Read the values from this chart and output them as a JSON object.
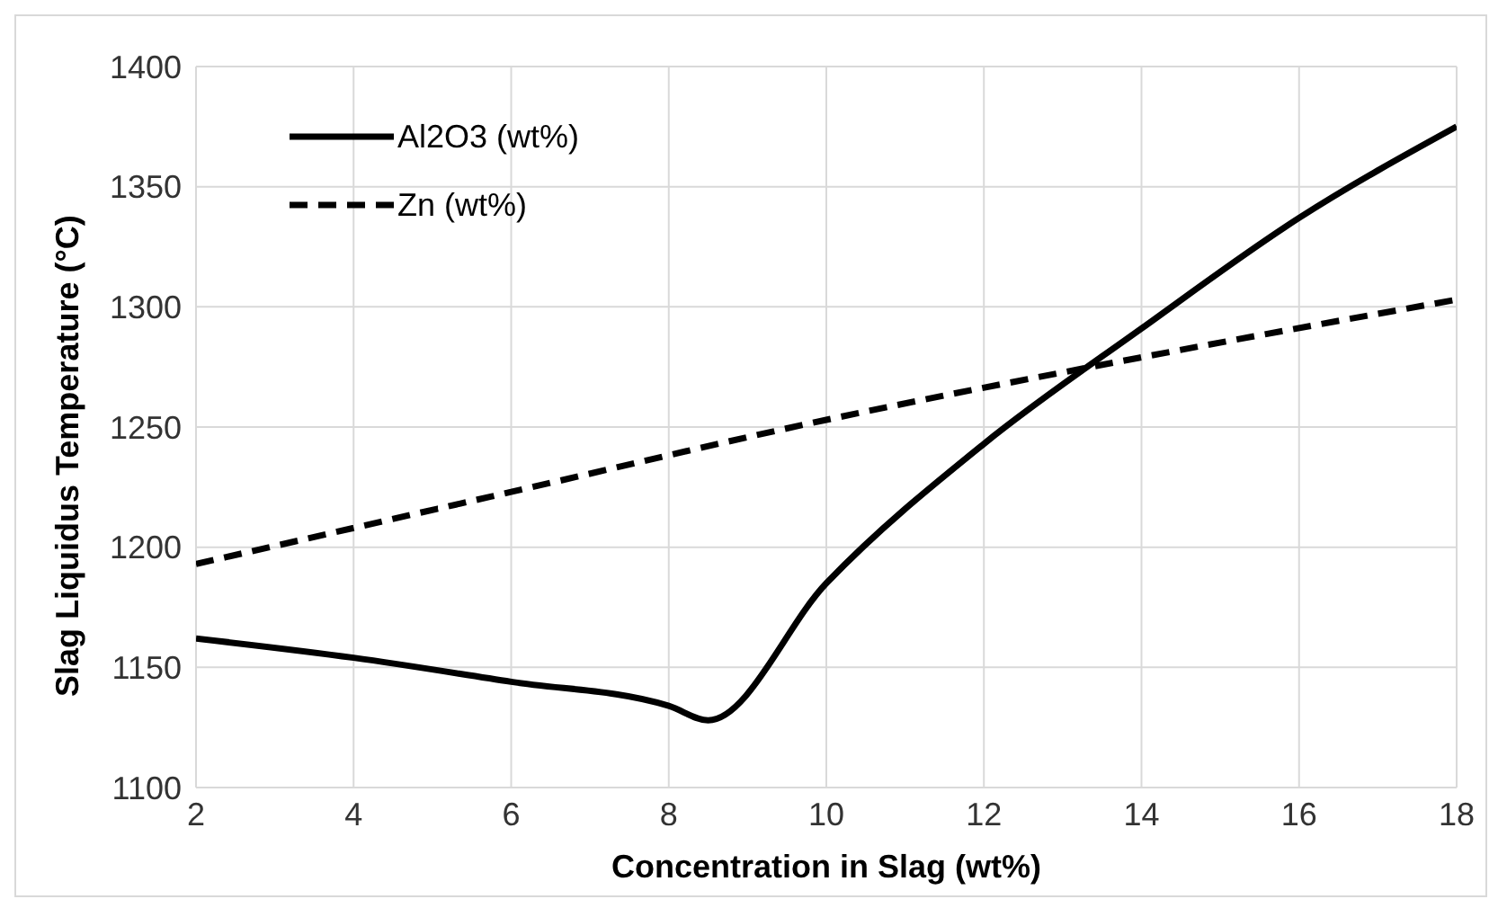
{
  "chart_data": {
    "type": "line",
    "xlabel": "Concentration in Slag (wt%)",
    "ylabel": "Slag Liquidus Temperature (°C)",
    "xlim": [
      2,
      18
    ],
    "xticks": [
      2,
      4,
      6,
      8,
      10,
      12,
      14,
      16,
      18
    ],
    "ylim": [
      1100,
      1400
    ],
    "yticks": [
      1100,
      1150,
      1200,
      1250,
      1300,
      1350,
      1400
    ],
    "grid": true,
    "legend": "top left",
    "marker": "none",
    "series": [
      {
        "name": "Al2O3 (wt%)",
        "color": "#000000",
        "line_style": "solid",
        "x": [
          2,
          4,
          6,
          8,
          8.5,
          10,
          12,
          14,
          16,
          18
        ],
        "values": [
          1162,
          1154,
          1144,
          1134,
          1128,
          1185,
          1243,
          1291,
          1337,
          1375
        ]
      },
      {
        "name": "Zn (wt%)",
        "color": "#000000",
        "line_style": "dashed",
        "x": [
          2,
          6,
          10,
          14,
          18
        ],
        "values": [
          1193,
          1223,
          1253,
          1279,
          1303
        ]
      }
    ]
  }
}
